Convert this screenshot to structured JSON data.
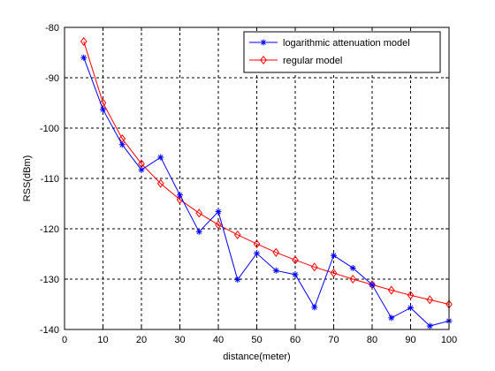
{
  "chart_data": {
    "type": "line",
    "title": "",
    "xlabel": "distance(meter)",
    "ylabel": "RSS(dBm)",
    "xlim": [
      0,
      100
    ],
    "ylim": [
      -140,
      -80
    ],
    "xticks": [
      0,
      10,
      20,
      30,
      40,
      50,
      60,
      70,
      80,
      90,
      100
    ],
    "yticks": [
      -140,
      -130,
      -120,
      -110,
      -100,
      -90,
      -80
    ],
    "xtick_labels": [
      "0",
      "10",
      "20",
      "30",
      "40",
      "50",
      "60",
      "70",
      "80",
      "90",
      "100"
    ],
    "ytick_labels": [
      "-140",
      "-130",
      "-120",
      "-110",
      "-100",
      "-90",
      "-80"
    ],
    "grid": true,
    "grid_style": "dashed",
    "legend_position": "top-right",
    "x": [
      5,
      10,
      15,
      20,
      25,
      30,
      35,
      40,
      45,
      50,
      55,
      60,
      65,
      70,
      75,
      80,
      85,
      90,
      95,
      100
    ],
    "series": [
      {
        "name": "logarithmic attenuation model",
        "color": "#0000ff",
        "marker": "asterisk",
        "values": [
          -86,
          -96.3,
          -103.3,
          -108.3,
          -105.8,
          -113.3,
          -120.6,
          -116.6,
          -130.1,
          -124.9,
          -128.3,
          -129.1,
          -135.6,
          -125.3,
          -127.8,
          -131.1,
          -137.7,
          -135.7,
          -139.3,
          -138.3
        ]
      },
      {
        "name": "regular model",
        "color": "#ff0000",
        "marker": "diamond",
        "values": [
          -82.8,
          -95,
          -102.1,
          -107.1,
          -111,
          -114.2,
          -116.9,
          -119.2,
          -121.2,
          -123,
          -124.7,
          -126.2,
          -127.6,
          -128.8,
          -130,
          -131.1,
          -132.2,
          -133.2,
          -134.1,
          -135
        ]
      }
    ]
  }
}
